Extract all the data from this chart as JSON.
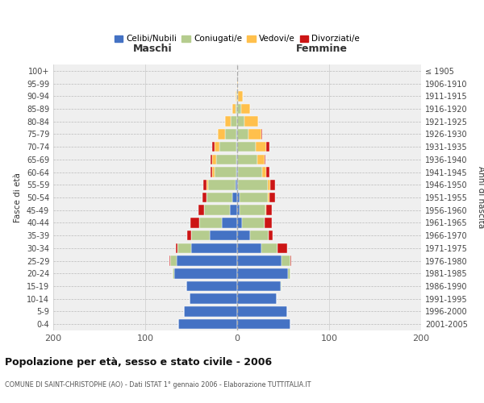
{
  "age_groups": [
    "100+",
    "95-99",
    "90-94",
    "85-89",
    "80-84",
    "75-79",
    "70-74",
    "65-69",
    "60-64",
    "55-59",
    "50-54",
    "45-49",
    "40-44",
    "35-39",
    "30-34",
    "25-29",
    "20-24",
    "15-19",
    "10-14",
    "5-9",
    "0-4"
  ],
  "birth_years": [
    "≤ 1905",
    "1906-1910",
    "1911-1915",
    "1916-1920",
    "1921-1925",
    "1926-1930",
    "1931-1935",
    "1936-1940",
    "1941-1945",
    "1946-1950",
    "1951-1955",
    "1956-1960",
    "1961-1965",
    "1966-1970",
    "1971-1975",
    "1976-1980",
    "1981-1985",
    "1986-1990",
    "1991-1995",
    "1996-2000",
    "2001-2005"
  ],
  "maschi": {
    "celibi": [
      0,
      0,
      0,
      0,
      0,
      1,
      1,
      1,
      1,
      2,
      5,
      8,
      17,
      30,
      50,
      66,
      68,
      55,
      52,
      58,
      64
    ],
    "coniugati": [
      0,
      0,
      1,
      2,
      7,
      12,
      18,
      22,
      24,
      30,
      28,
      28,
      24,
      20,
      15,
      7,
      2,
      0,
      0,
      0,
      0
    ],
    "vedovi": [
      0,
      0,
      1,
      3,
      6,
      8,
      6,
      4,
      2,
      1,
      0,
      0,
      0,
      0,
      0,
      0,
      0,
      0,
      0,
      0,
      0
    ],
    "divorziati": [
      0,
      0,
      0,
      0,
      0,
      0,
      2,
      2,
      2,
      4,
      5,
      6,
      10,
      4,
      2,
      1,
      0,
      0,
      0,
      0,
      0
    ]
  },
  "femmine": {
    "nubili": [
      0,
      0,
      0,
      0,
      0,
      0,
      0,
      0,
      1,
      1,
      3,
      3,
      5,
      14,
      26,
      48,
      55,
      47,
      43,
      54,
      58
    ],
    "coniugate": [
      0,
      0,
      1,
      4,
      8,
      12,
      20,
      22,
      26,
      32,
      30,
      28,
      25,
      20,
      18,
      10,
      3,
      1,
      0,
      0,
      0
    ],
    "vedove": [
      0,
      1,
      5,
      10,
      15,
      14,
      12,
      8,
      5,
      3,
      2,
      1,
      0,
      0,
      0,
      0,
      0,
      0,
      0,
      0,
      0
    ],
    "divorziate": [
      0,
      0,
      0,
      0,
      0,
      1,
      3,
      1,
      3,
      5,
      6,
      6,
      8,
      5,
      10,
      1,
      0,
      0,
      0,
      0,
      0
    ]
  },
  "colors": {
    "celibi": "#4472c4",
    "coniugati": "#b5cc8e",
    "vedovi": "#ffc04c",
    "divorziati": "#cc1515"
  },
  "title": "Popolazione per età, sesso e stato civile - 2006",
  "subtitle": "COMUNE DI SAINT-CHRISTOPHE (AO) - Dati ISTAT 1° gennaio 2006 - Elaborazione TUTTITALIA.IT",
  "xlabel_left": "Maschi",
  "xlabel_right": "Femmine",
  "ylabel_left": "Fasce di età",
  "ylabel_right": "Anni di nascita",
  "xlim": 200,
  "legend_labels": [
    "Celibi/Nubili",
    "Coniugati/e",
    "Vedovi/e",
    "Divorziati/e"
  ],
  "background_color": "#ffffff",
  "bar_height": 0.8
}
